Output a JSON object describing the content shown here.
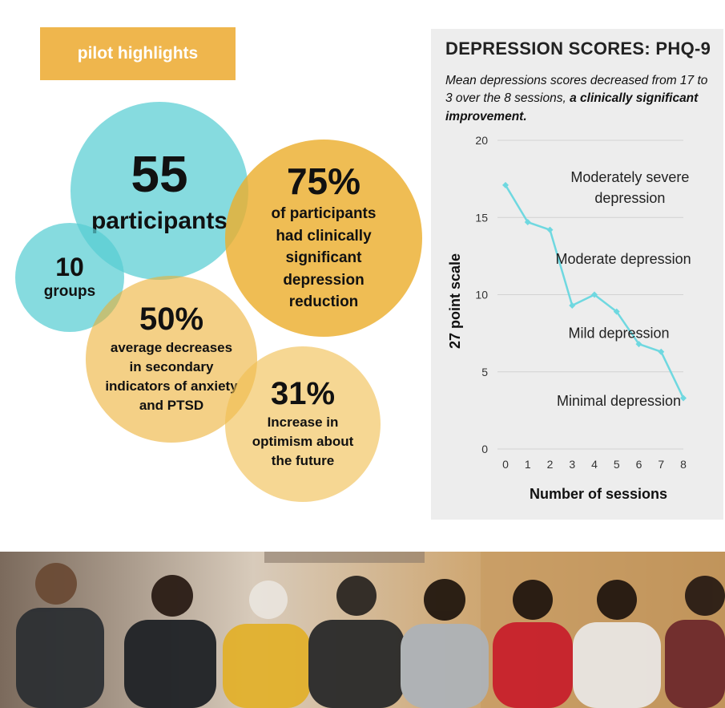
{
  "banner": {
    "label": "pilot highlights"
  },
  "stats": {
    "participants": {
      "value": "55",
      "label": "participants"
    },
    "reduction": {
      "value": "75%",
      "desc": [
        "of participants",
        "had clinically",
        "significant",
        "depression",
        "reduction"
      ]
    },
    "groups": {
      "value": "10",
      "label": "groups"
    },
    "secondary": {
      "value": "50%",
      "desc": [
        "average decreases",
        "in secondary",
        "indicators of anxiety",
        "and PTSD"
      ]
    },
    "optimism": {
      "value": "31%",
      "desc": [
        "Increase in",
        "optimism about",
        "the future"
      ]
    }
  },
  "panel": {
    "title": "DEPRESSION SCORES: PHQ-9",
    "subtitle_plain": "Mean depressions scores decreased from 17 to 3 over the 8 sessions, ",
    "subtitle_bold": "a clinically significant improvement."
  },
  "chart_data": {
    "type": "line",
    "x": [
      0,
      1,
      2,
      3,
      4,
      5,
      6,
      7,
      8
    ],
    "series": [
      {
        "values": [
          17.1,
          14.7,
          14.2,
          9.3,
          10.0,
          8.9,
          6.8,
          6.3,
          3.3
        ]
      }
    ],
    "xlabel": "Number of sessions",
    "ylabel": "27 point scale",
    "xticks": [
      "0",
      "1",
      "2",
      "3",
      "4",
      "5",
      "6",
      "7",
      "8"
    ],
    "yticks": [
      "0",
      "5",
      "10",
      "15",
      "20"
    ],
    "xlim": [
      0,
      8
    ],
    "ylim": [
      0,
      20
    ],
    "grid": true,
    "line_color": "#6fd8e0",
    "annotations": [
      {
        "lines": [
          "Moderately severe",
          "depression"
        ],
        "x": 5.6,
        "y": 17.3
      },
      {
        "lines": [
          "Moderate depression"
        ],
        "x": 5.3,
        "y": 12.0
      },
      {
        "lines": [
          "Mild depression"
        ],
        "x": 5.1,
        "y": 7.2
      },
      {
        "lines": [
          "Minimal depression"
        ],
        "x": 5.1,
        "y": 2.8
      }
    ]
  },
  "photo": {
    "description_icon": "group-photo"
  },
  "colors": {
    "banner": "#efb64d",
    "teal": "#58cdd2",
    "gold": "#ecae2e",
    "panel": "#ededed"
  }
}
